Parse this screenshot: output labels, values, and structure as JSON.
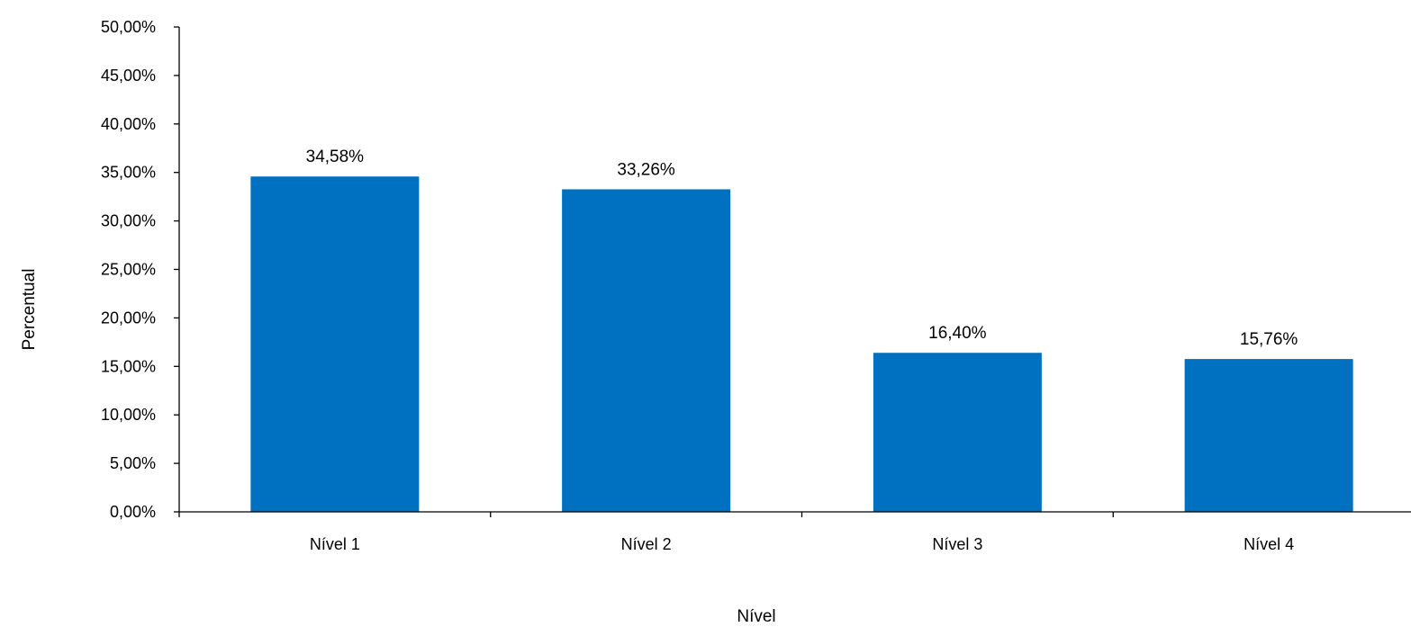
{
  "chart_data": {
    "type": "bar",
    "categories": [
      "Nível 1",
      "Nível 2",
      "Nível 3",
      "Nível 4"
    ],
    "values": [
      34.58,
      33.26,
      16.4,
      15.76
    ],
    "data_labels": [
      "34,58%",
      "33,26%",
      "16,40%",
      "15,76%"
    ],
    "title": "",
    "xlabel": "Nível",
    "ylabel": "Percentual",
    "ylim": [
      0,
      50
    ],
    "yticks": [
      0,
      5,
      10,
      15,
      20,
      25,
      30,
      35,
      40,
      45,
      50
    ],
    "ytick_labels": [
      "0,00%",
      "5,00%",
      "10,00%",
      "15,00%",
      "20,00%",
      "25,00%",
      "30,00%",
      "35,00%",
      "40,00%",
      "45,00%",
      "50,00%"
    ],
    "grid": false,
    "legend": "none",
    "colors": {
      "bar": "#0070C0",
      "axis": "#000000"
    }
  }
}
